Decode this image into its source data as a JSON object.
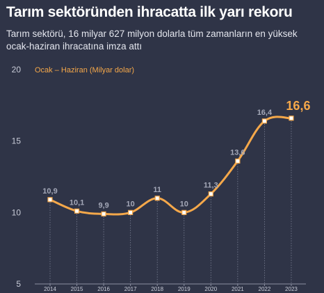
{
  "header": {
    "title": "Tarım sektöründen ihracatta ilk yarı rekoru",
    "subtitle": "Tarım sektörü, 16 milyar 627 milyon dolarla tüm zamanların en yüksek ocak-haziran ihracatına imza attı"
  },
  "chart_data": {
    "type": "line",
    "title": "Tarım sektöründen ihracatta ilk yarı rekoru",
    "legend_label": "Ocak – Haziran (Milyar dolar)",
    "x": [
      "2014",
      "2015",
      "2016",
      "2017",
      "2018",
      "2019",
      "2020",
      "2021",
      "2022",
      "2023"
    ],
    "series": [
      {
        "name": "Ocak – Haziran (Milyar dolar)",
        "values": [
          10.9,
          10.1,
          9.9,
          10,
          11,
          10,
          11.3,
          13.6,
          16.4,
          16.6
        ],
        "labels": [
          "10,9",
          "10,1",
          "9,9",
          "10",
          "11",
          "10",
          "11,3",
          "13,6",
          "16,4",
          "16,6"
        ]
      }
    ],
    "y_ticks": [
      "5",
      "10",
      "15",
      "20"
    ],
    "ylim": [
      5,
      20
    ],
    "grid": "vertical-dotted-drop-lines",
    "legend_position": "top-left",
    "colors": {
      "background": "#2f3447",
      "line": "#f5a84a",
      "marker": "#ffffff",
      "data_label": "#a4a8b8",
      "highlight_label": "#f5a84a",
      "axis_text": "#c9ccd8"
    }
  }
}
